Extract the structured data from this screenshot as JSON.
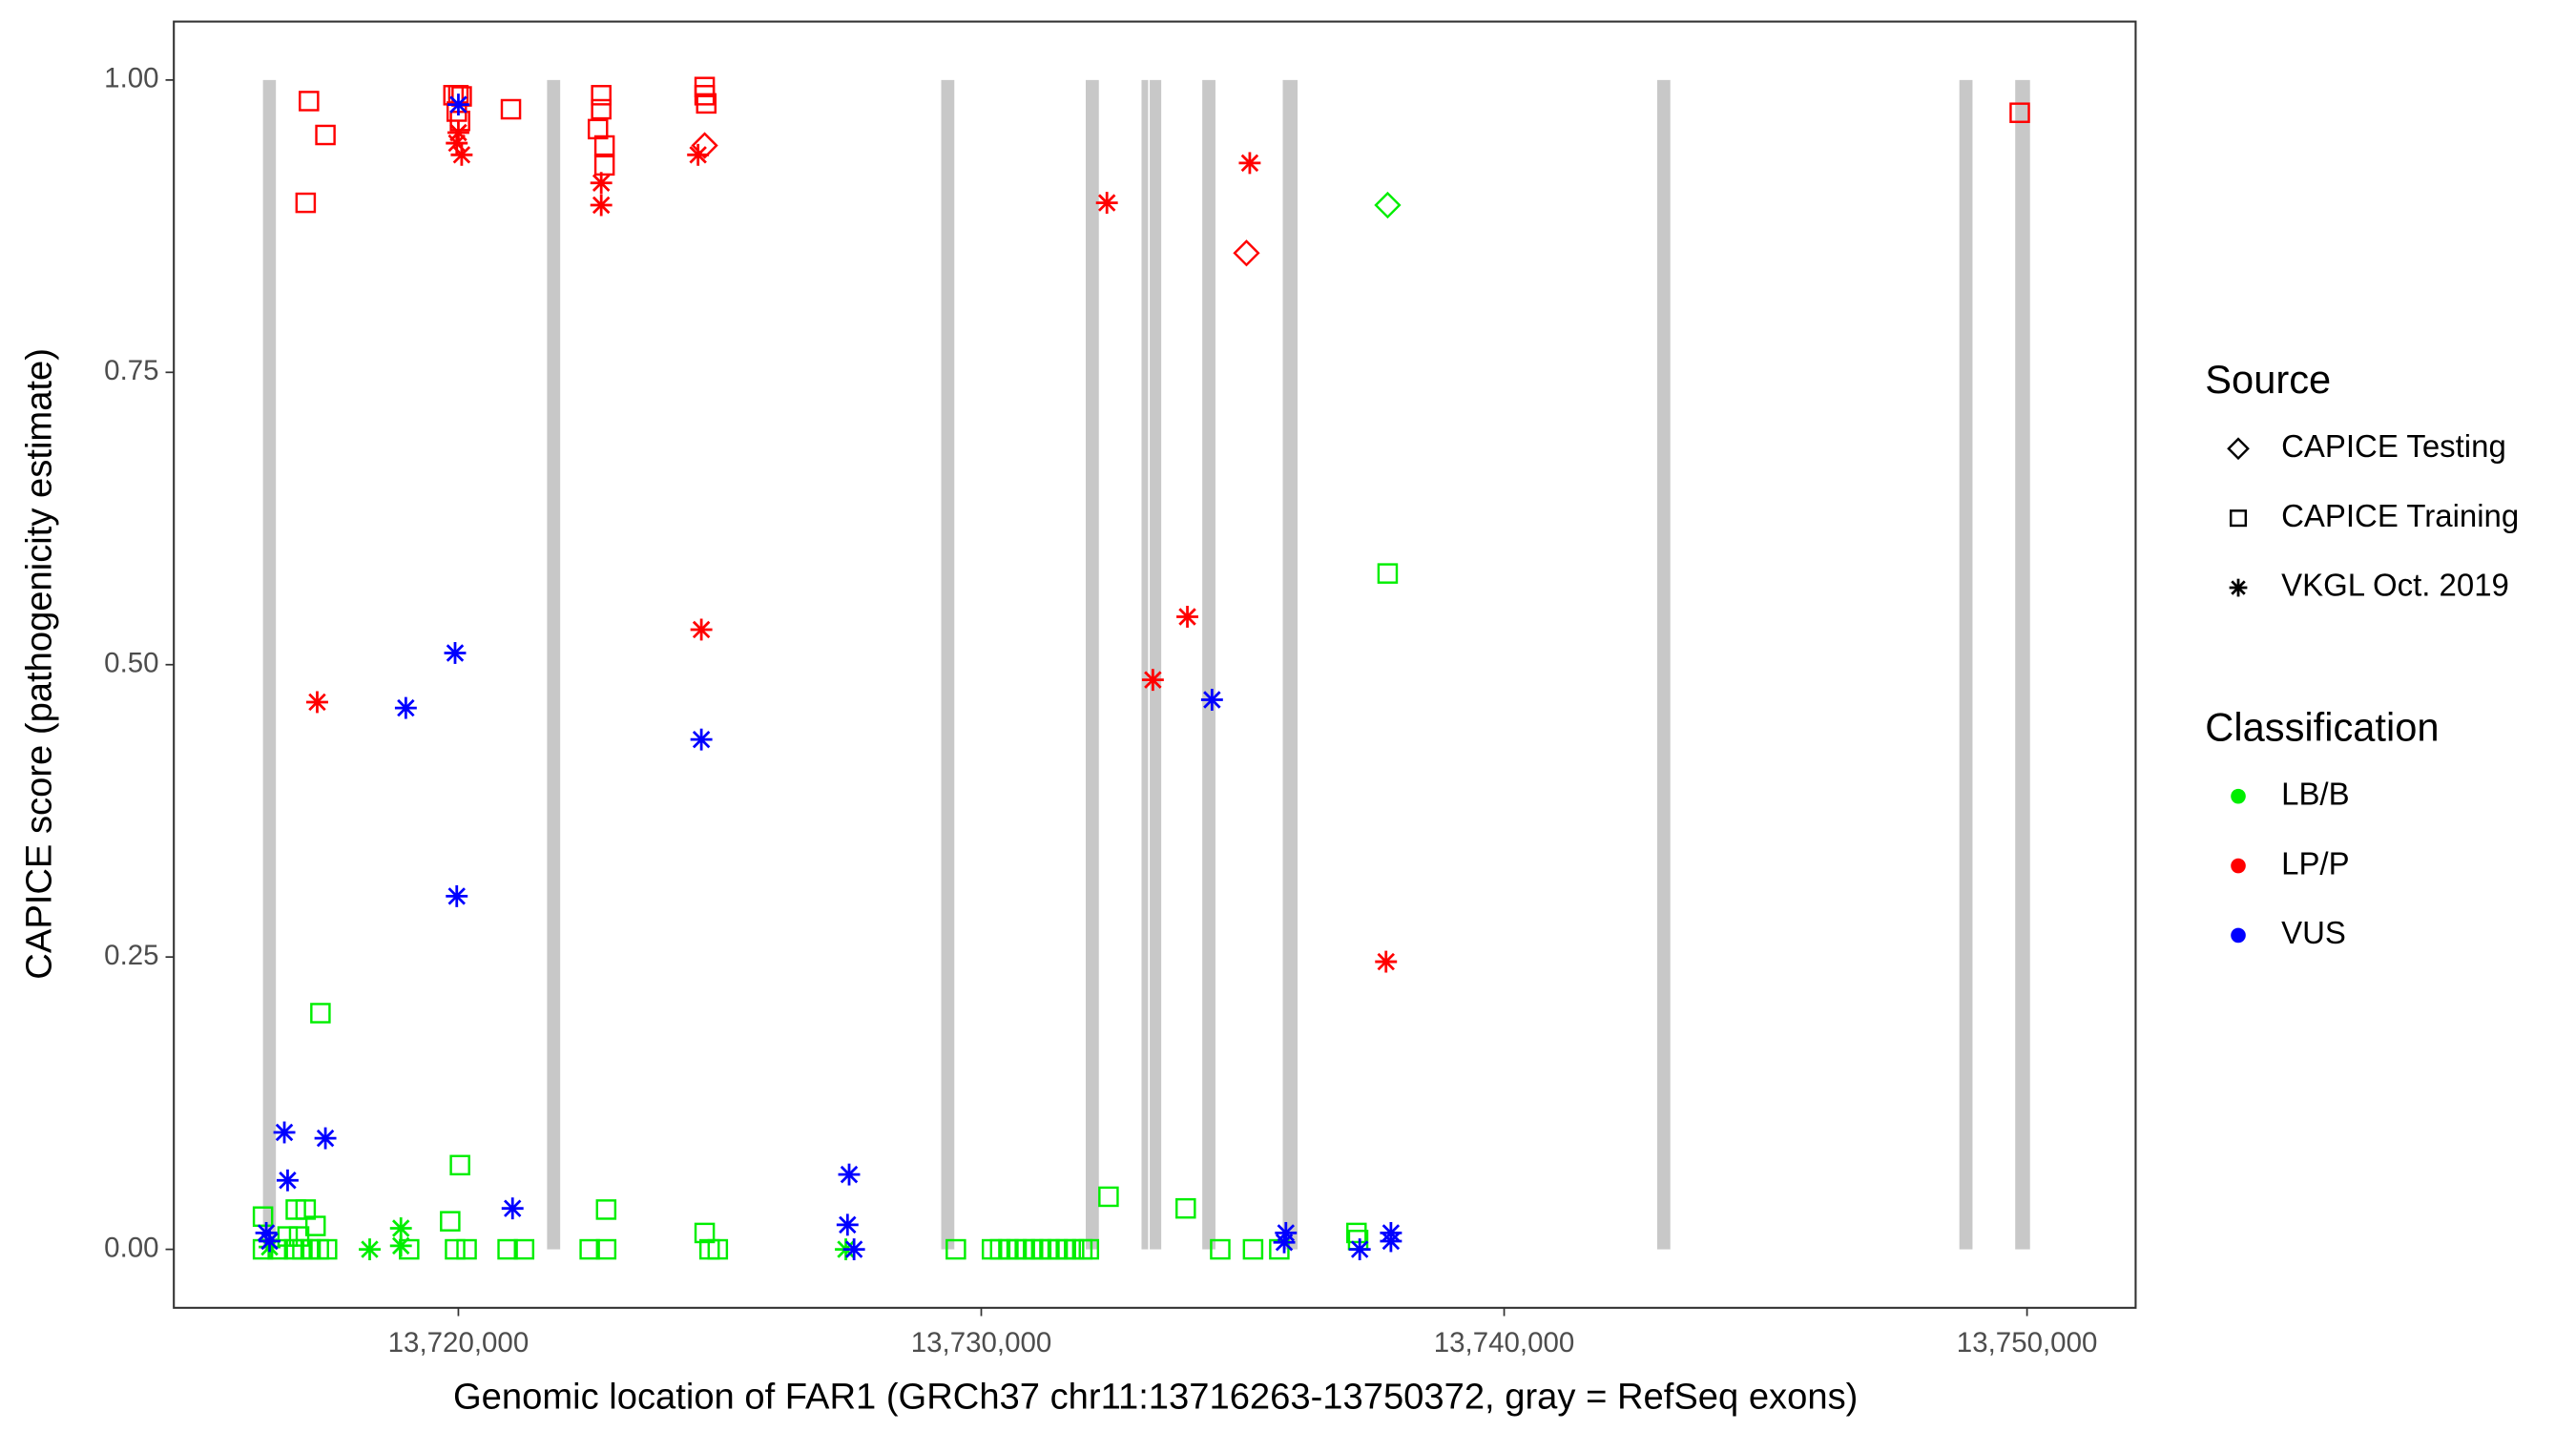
{
  "chart_data": {
    "type": "scatter",
    "x_label": "Genomic location of FAR1 (GRCh37 chr11:13716263-13750372, gray = RefSeq exons)",
    "y_label": "CAPICE score (pathogenicity estimate)",
    "xlim": [
      13714558,
      13752077
    ],
    "ylim": [
      -0.05,
      1.05
    ],
    "xticks": [
      {
        "value": 13720000,
        "label": "13,720,000"
      },
      {
        "value": 13730000,
        "label": "13,730,000"
      },
      {
        "value": 13740000,
        "label": "13,740,000"
      },
      {
        "value": 13750000,
        "label": "13,750,000"
      }
    ],
    "yticks": [
      {
        "value": 0,
        "label": "0.00"
      },
      {
        "value": 0.25,
        "label": "0.25"
      },
      {
        "value": 0.5,
        "label": "0.50"
      },
      {
        "value": 0.75,
        "label": "0.75"
      },
      {
        "value": 1,
        "label": "1.00"
      }
    ],
    "grid": false,
    "exon_color": "#c8c8c8",
    "exons": [
      [
        13716263,
        13716510
      ],
      [
        13721696,
        13721947
      ],
      [
        13729234,
        13729485
      ],
      [
        13731998,
        13732249
      ],
      [
        13733065,
        13733191
      ],
      [
        13733222,
        13733442
      ],
      [
        13734227,
        13734479
      ],
      [
        13735766,
        13736049
      ],
      [
        13742927,
        13743178
      ],
      [
        13748706,
        13748957
      ],
      [
        13749774,
        13750057
      ]
    ],
    "legends": [
      {
        "title": "Source",
        "items": [
          {
            "name": "CAPICE Testing",
            "shape": "diamond"
          },
          {
            "name": "CAPICE Training",
            "shape": "square"
          },
          {
            "name": "VKGL Oct. 2019",
            "shape": "asterisk"
          }
        ]
      },
      {
        "title": "Classification",
        "items": [
          {
            "name": "LB/B",
            "color": "#00ee00"
          },
          {
            "name": "LP/P",
            "color": "#ff0000"
          },
          {
            "name": "VUS",
            "color": "#0000ff"
          }
        ]
      }
    ],
    "series": [
      {
        "source": "CAPICE Training",
        "classification": "LB/B",
        "x": [
          13717362,
          13720031,
          13719843,
          13722826,
          13724710,
          13732434,
          13733910,
          13737772,
          13737176,
          13737207,
          13716263,
          13716891,
          13717079,
          13717268,
          13716734,
          13716954,
          13716263,
          13716546,
          13716860,
          13717017,
          13717174,
          13717331,
          13717488,
          13719058,
          13719937,
          13720157,
          13720942,
          13721256,
          13722512,
          13722826,
          13724804,
          13724961,
          13729514,
          13730205,
          13730362,
          13730519,
          13730676,
          13730833,
          13730990,
          13731147,
          13731304,
          13731461,
          13731618,
          13731775,
          13731932,
          13732058,
          13734570,
          13735198,
          13735700
        ],
        "y": [
          0.202,
          0.072,
          0.024,
          0.034,
          0.014,
          0.045,
          0.035,
          0.578,
          0.014,
          0.008,
          0.028,
          0.034,
          0.034,
          0.02,
          0.011,
          0.011,
          0,
          0,
          0,
          0,
          0,
          0,
          0,
          0,
          0,
          0,
          0,
          0,
          0,
          0,
          0,
          0,
          0,
          0,
          0,
          0,
          0,
          0,
          0,
          0,
          0,
          0,
          0,
          0,
          0,
          0,
          0,
          0,
          0
        ]
      },
      {
        "source": "CAPICE Training",
        "classification": "LP/P",
        "x": [
          13717142,
          13717079,
          13717457,
          13719906,
          13720000,
          13720063,
          13719969,
          13720031,
          13721005,
          13722669,
          13722732,
          13722732,
          13722795,
          13722795,
          13724710,
          13724710,
          13724741,
          13749861
        ],
        "y": [
          0.982,
          0.895,
          0.953,
          0.987,
          0.987,
          0.986,
          0.973,
          0.965,
          0.975,
          0.958,
          0.987,
          0.975,
          0.944,
          0.927,
          0.994,
          0.987,
          0.98,
          0.972
        ]
      },
      {
        "source": "CAPICE Testing",
        "classification": "LB/B",
        "x": [
          13737772
        ],
        "y": [
          0.893
        ]
      },
      {
        "source": "CAPICE Testing",
        "classification": "LP/P",
        "x": [
          13724710,
          13735072
        ],
        "y": [
          0.944,
          0.852
        ]
      },
      {
        "source": "VKGL Oct. 2019",
        "classification": "LB/B",
        "x": [
          13718304,
          13718901,
          13718901,
          13716389,
          13727410
        ],
        "y": [
          0,
          0.018,
          0.003,
          0.002,
          0
        ]
      },
      {
        "source": "VKGL Oct. 2019",
        "classification": "LP/P",
        "x": [
          13717300,
          13720000,
          13720063,
          13719969,
          13722732,
          13722732,
          13724584,
          13724647,
          13732403,
          13733282,
          13733942,
          13735135,
          13737741
        ],
        "y": [
          0.468,
          0.955,
          0.936,
          0.946,
          0.912,
          0.893,
          0.936,
          0.53,
          0.895,
          0.487,
          0.541,
          0.929,
          0.246
        ]
      },
      {
        "source": "VKGL Oct. 2019",
        "classification": "VUS",
        "x": [
          13720000,
          13718995,
          13719937,
          13719969,
          13724647,
          13734413,
          13716672,
          13716734,
          13717457,
          13721036,
          13727473,
          13727442,
          13727567,
          13735826,
          13735794,
          13737238,
          13737835,
          13737835,
          13716326,
          13716389
        ],
        "y": [
          0.979,
          0.463,
          0.51,
          0.302,
          0.436,
          0.47,
          0.1,
          0.059,
          0.095,
          0.035,
          0.064,
          0.021,
          0,
          0.014,
          0.006,
          0,
          0.014,
          0.007,
          0.014,
          0.007
        ]
      }
    ]
  }
}
